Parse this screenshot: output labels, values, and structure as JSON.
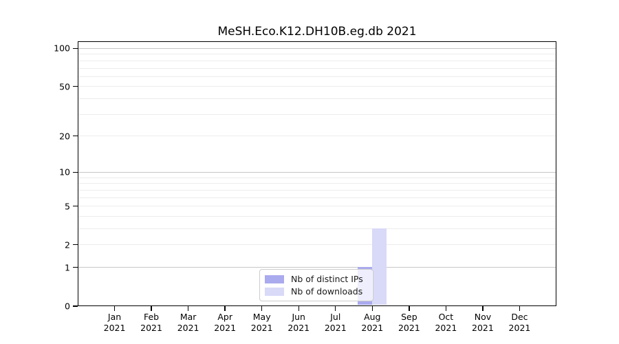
{
  "title": "MeSH.Eco.K12.DH10B.eg.db 2021",
  "chart_data": {
    "type": "bar",
    "title": "MeSH.Eco.K12.DH10B.eg.db 2021",
    "categories": [
      "Jan 2021",
      "Feb 2021",
      "Mar 2021",
      "Apr 2021",
      "May 2021",
      "Jun 2021",
      "Jul 2021",
      "Aug 2021",
      "Sep 2021",
      "Oct 2021",
      "Nov 2021",
      "Dec 2021"
    ],
    "series": [
      {
        "name": "Nb of distinct IPs",
        "color": "#aaaaee",
        "values": [
          0,
          0,
          0,
          0,
          0,
          0,
          0,
          1,
          0,
          0,
          0,
          0
        ]
      },
      {
        "name": "Nb of downloads",
        "color": "#d9d9f8",
        "values": [
          0,
          0,
          0,
          0,
          0,
          0,
          0,
          3,
          0,
          0,
          0,
          0
        ]
      }
    ],
    "yscale": "log1p",
    "ylim": [
      0,
      113.6
    ],
    "yticks": [
      0,
      1,
      2,
      5,
      10,
      20,
      50,
      100
    ],
    "yticks_minor": [
      3,
      4,
      6,
      7,
      8,
      9,
      30,
      40,
      60,
      70,
      80,
      90
    ],
    "grid": "both",
    "legend": {
      "position": "bottom-center",
      "entries": [
        "Nb of distinct IPs",
        "Nb of downloads"
      ]
    }
  }
}
